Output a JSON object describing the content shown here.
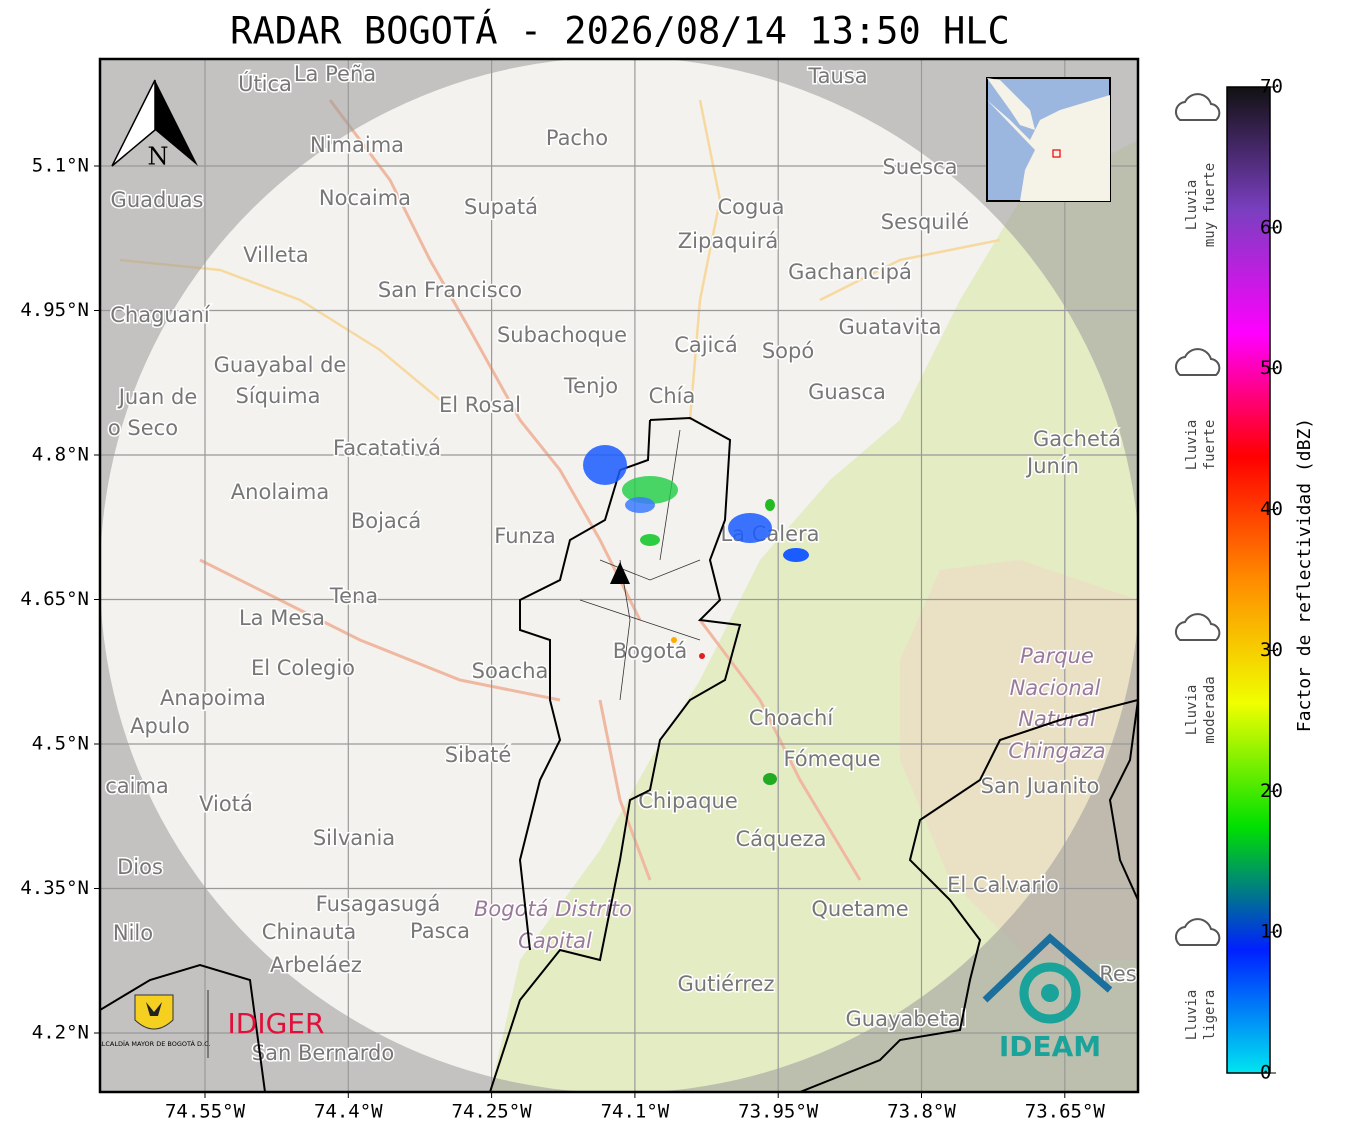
{
  "header": {
    "title": "RADAR BOGOTÁ - 2026/08/14 13:50 HLC"
  },
  "map": {
    "lat_ticks": [
      {
        "value": 5.1,
        "label": "5.1°N"
      },
      {
        "value": 4.95,
        "label": "4.95°N"
      },
      {
        "value": 4.8,
        "label": "4.8°N"
      },
      {
        "value": 4.65,
        "label": "4.65°N"
      },
      {
        "value": 4.5,
        "label": "4.5°N"
      },
      {
        "value": 4.35,
        "label": "4.35°N"
      },
      {
        "value": 4.2,
        "label": "4.2°N"
      }
    ],
    "lon_ticks": [
      {
        "value": -74.55,
        "label": "74.55°W"
      },
      {
        "value": -74.4,
        "label": "74.4°W"
      },
      {
        "value": -74.25,
        "label": "74.25°W"
      },
      {
        "value": -74.1,
        "label": "74.1°W"
      },
      {
        "value": -73.95,
        "label": "73.95°W"
      },
      {
        "value": -73.8,
        "label": "73.8°W"
      },
      {
        "value": -73.65,
        "label": "73.65°W"
      }
    ],
    "grid": true,
    "north_label": "N",
    "places": [
      "Útica",
      "La Peña",
      "Tausa",
      "Pacho",
      "Nimaima",
      "Suesca",
      "Guaduas",
      "Nocaima",
      "Supatá",
      "Cogua",
      "Sesquilé",
      "Zipaquirá",
      "Villeta",
      "Gachancipá",
      "San Francisco",
      "Chaguaní",
      "Guatavita",
      "Subachoque",
      "Cajicá",
      "Sopó",
      "Guayabal de",
      "Síquima",
      "Tenjo",
      "Chía",
      "Guasca",
      "Juan de",
      "o Seco",
      "El Rosal",
      "Gachetá",
      "Junín",
      "Facatativá",
      "Anolaima",
      "Bojacá",
      "Funza",
      "La Calera",
      "Tena",
      "La Mesa",
      "El Colegio",
      "Soacha",
      "Bogotá",
      "Parque",
      "Nacional",
      "Natural",
      "Chingaza",
      "Anapoima",
      "Apulo",
      "Choachí",
      "Fómeque",
      "Sibaté",
      "San Juanito",
      "caima",
      "Viotá",
      "Chipaque",
      "Cáqueza",
      "Silvania",
      "Dios",
      "El Calvario",
      "Fusagasugá",
      "Bogotá Distrito",
      "Capital",
      "Quetame",
      "Nilo",
      "Chinauta",
      "Pasca",
      "Arbeláez",
      "Gutiérrez",
      "Guayabetal",
      "San Bernardo",
      "Res"
    ]
  },
  "logos": {
    "alcaldia": "ALCALDÍA MAYOR DE BOGOTÁ D.C.",
    "idiger": "IDIGER",
    "ideam": "IDEAM"
  },
  "colorbar": {
    "label": "Factor de reflectividad (dBZ)",
    "lim": [
      0,
      70
    ],
    "ticks": [
      0,
      10,
      20,
      30,
      40,
      50,
      60,
      70
    ],
    "colors": [
      "#00e5f0",
      "#0020ff",
      "#00e000",
      "#f0ff00",
      "#ff8c00",
      "#ff0000",
      "#ff00ff",
      "#7a3fc0",
      "#111111"
    ],
    "categories": [
      {
        "lines": [
          "Lluvia",
          "muy fuerte"
        ]
      },
      {
        "lines": [
          "Lluvia",
          "fuerte"
        ]
      },
      {
        "lines": [
          "Lluvia",
          "moderada"
        ]
      },
      {
        "lines": [
          "Lluvia",
          "ligera"
        ]
      }
    ]
  }
}
